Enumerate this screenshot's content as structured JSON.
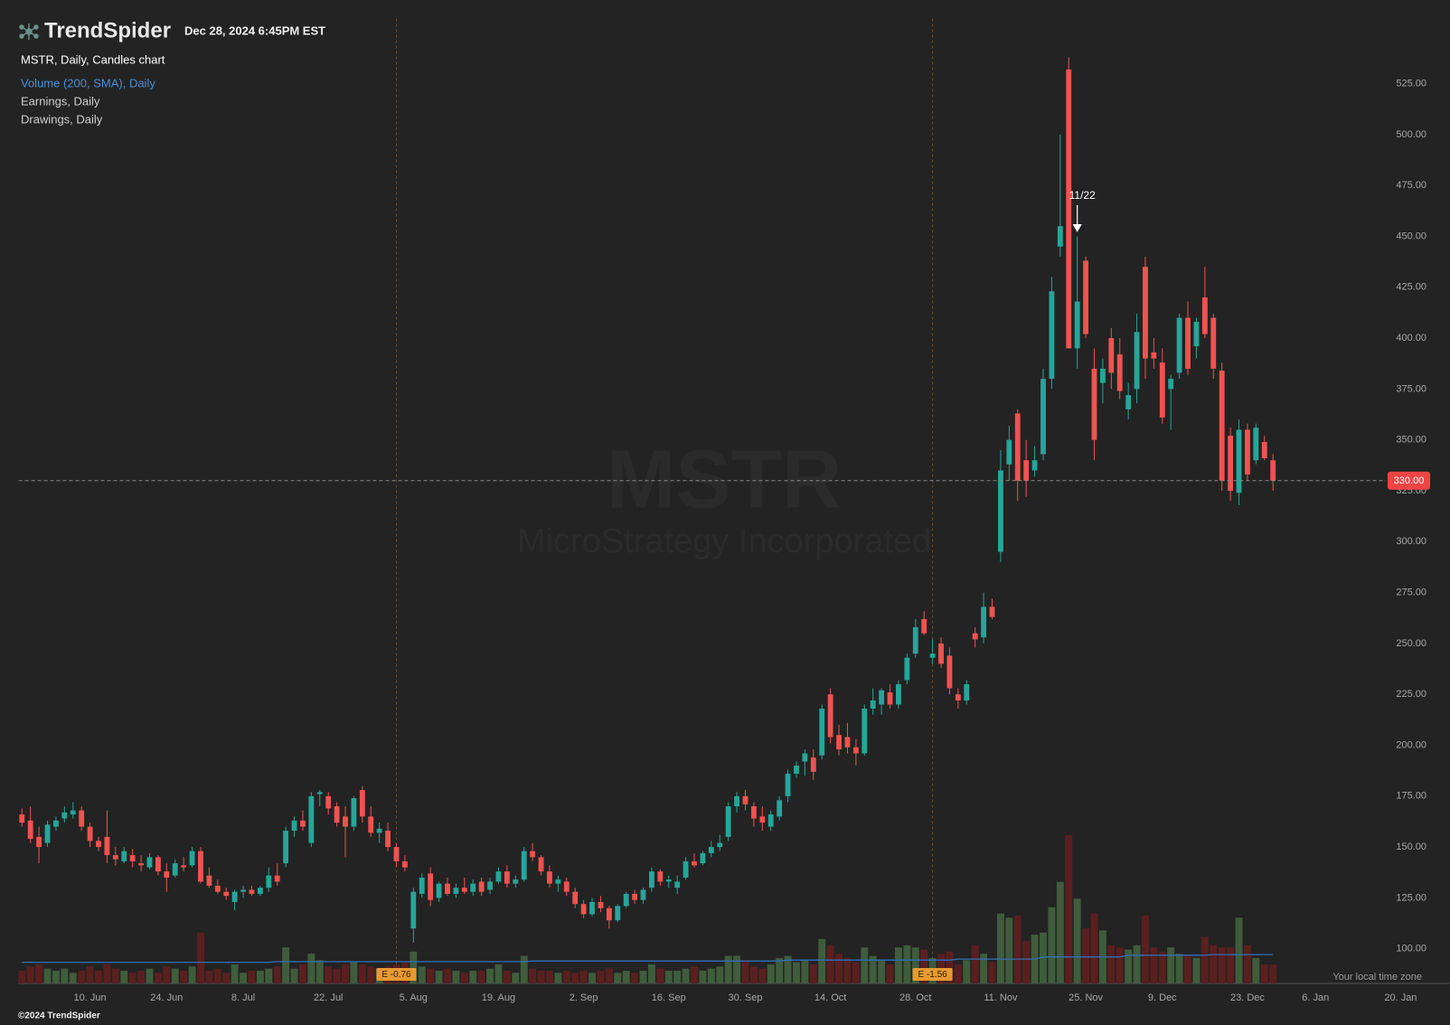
{
  "header": {
    "brand": "TrendSpider",
    "timestamp": "Dec 28, 2024 6:45PM EST"
  },
  "legend": [
    "Volume (200, SMA), Daily",
    "Earnings, Daily",
    "Drawings, Daily"
  ],
  "watermark": {
    "symbol": "MSTR",
    "name": "MicroStrategy Incorporated"
  },
  "footer": {
    "timezone_note": "Your local time zone",
    "copyright": "©2024 TrendSpider"
  },
  "chart_data": {
    "type": "candlestick",
    "title": "MSTR, Daily, Candles chart",
    "up_color": "#26a69a",
    "down_color": "#ef5350",
    "volume_up_color": "#3f5c3c",
    "volume_down_color": "#5a1f1f",
    "sma_color": "#2f6fb8",
    "open": [
      166,
      163,
      155,
      152,
      160,
      164,
      166,
      168,
      160,
      153,
      155,
      146,
      143,
      146,
      142,
      140,
      145,
      138,
      136,
      141,
      141,
      148,
      136,
      131,
      128,
      123,
      128,
      129,
      127,
      130,
      136,
      142,
      158,
      163,
      152,
      176,
      175,
      170,
      165,
      160,
      178,
      165,
      157,
      158,
      150,
      143,
      110,
      127,
      137,
      125,
      132,
      127,
      130,
      128,
      133,
      129,
      133,
      138,
      132,
      134,
      148,
      145,
      138,
      132,
      133,
      128,
      122,
      117,
      123,
      120,
      114,
      121,
      127,
      124,
      130,
      138,
      133,
      130,
      135,
      143,
      142,
      147,
      150,
      155,
      170,
      175,
      170,
      165,
      160,
      165,
      175,
      186,
      192,
      194,
      195,
      225,
      205,
      204,
      199,
      196,
      218,
      220,
      226,
      220,
      232,
      245,
      262,
      243,
      250,
      244,
      225,
      222,
      255,
      253,
      268,
      295,
      338,
      363,
      340,
      335,
      343,
      380,
      445,
      532,
      395,
      438,
      385,
      378,
      400,
      392,
      365,
      375,
      435,
      393,
      388,
      375,
      383,
      410,
      396,
      420,
      410,
      384,
      352,
      324,
      355,
      340,
      349,
      340
    ],
    "high": [
      169,
      170,
      160,
      163,
      165,
      170,
      172,
      170,
      162,
      155,
      168,
      150,
      150,
      149,
      146,
      147,
      146,
      142,
      144,
      145,
      150,
      150,
      140,
      134,
      130,
      129,
      131,
      131,
      131,
      140,
      142,
      160,
      165,
      168,
      177,
      178,
      177,
      172,
      170,
      175,
      180,
      170,
      162,
      162,
      152,
      146,
      130,
      137,
      140,
      133,
      135,
      132,
      135,
      134,
      135,
      135,
      140,
      141,
      136,
      150,
      152,
      146,
      141,
      136,
      135,
      130,
      124,
      125,
      126,
      121,
      122,
      128,
      129,
      130,
      140,
      139,
      136,
      136,
      145,
      147,
      148,
      153,
      156,
      172,
      177,
      178,
      172,
      170,
      168,
      175,
      188,
      192,
      198,
      198,
      220,
      228,
      210,
      211,
      203,
      220,
      228,
      228,
      230,
      232,
      245,
      262,
      266,
      252,
      253,
      248,
      228,
      232,
      258,
      275,
      272,
      345,
      357,
      365,
      350,
      347,
      385,
      430,
      500,
      538,
      450,
      440,
      395,
      390,
      405,
      400,
      378,
      412,
      440,
      400,
      395,
      382,
      412,
      418,
      410,
      435,
      412,
      388,
      356,
      360,
      358,
      358,
      352,
      343
    ],
    "low": [
      160,
      152,
      142,
      150,
      158,
      162,
      164,
      158,
      150,
      148,
      142,
      141,
      142,
      140,
      138,
      139,
      136,
      128,
      135,
      138,
      140,
      132,
      130,
      127,
      124,
      119,
      125,
      126,
      126,
      128,
      131,
      140,
      155,
      158,
      150,
      170,
      166,
      160,
      145,
      158,
      162,
      155,
      152,
      148,
      140,
      138,
      103,
      125,
      121,
      123,
      126,
      125,
      127,
      126,
      126,
      127,
      132,
      130,
      130,
      133,
      143,
      136,
      130,
      128,
      126,
      120,
      115,
      116,
      118,
      110,
      113,
      120,
      122,
      122,
      128,
      131,
      130,
      127,
      134,
      140,
      141,
      145,
      148,
      153,
      167,
      168,
      160,
      158,
      158,
      163,
      172,
      184,
      185,
      183,
      193,
      201,
      195,
      196,
      190,
      195,
      215,
      215,
      218,
      218,
      230,
      243,
      254,
      240,
      238,
      225,
      218,
      220,
      248,
      250,
      262,
      290,
      330,
      320,
      322,
      332,
      340,
      375,
      440,
      395,
      385,
      400,
      340,
      368,
      375,
      370,
      360,
      368,
      380,
      385,
      358,
      355,
      380,
      382,
      390,
      400,
      380,
      325,
      320,
      318,
      330,
      338,
      340,
      325
    ],
    "close": [
      162,
      154,
      150,
      161,
      163,
      167,
      168,
      160,
      153,
      150,
      146,
      144,
      148,
      143,
      141,
      145,
      138,
      135,
      142,
      140,
      148,
      133,
      131,
      128,
      126,
      128,
      129,
      127,
      130,
      136,
      133,
      158,
      163,
      160,
      175,
      177,
      169,
      162,
      160,
      174,
      165,
      157,
      159,
      150,
      143,
      140,
      128,
      135,
      124,
      132,
      127,
      130,
      128,
      132,
      128,
      133,
      138,
      132,
      134,
      148,
      145,
      138,
      132,
      134,
      128,
      122,
      117,
      123,
      120,
      114,
      121,
      127,
      124,
      129,
      138,
      133,
      134,
      133,
      143,
      141,
      147,
      150,
      152,
      170,
      175,
      171,
      164,
      162,
      166,
      173,
      186,
      190,
      196,
      187,
      218,
      204,
      198,
      199,
      196,
      218,
      222,
      227,
      220,
      230,
      243,
      258,
      255,
      245,
      240,
      228,
      222,
      230,
      252,
      268,
      263,
      335,
      350,
      330,
      330,
      340,
      380,
      423,
      455,
      395,
      418,
      402,
      350,
      385,
      383,
      374,
      372,
      403,
      390,
      390,
      361,
      380,
      410,
      385,
      408,
      402,
      385,
      330,
      325,
      355,
      333,
      356,
      341,
      330
    ],
    "volume": [
      6,
      8,
      9,
      7,
      6,
      7,
      5,
      6,
      8,
      6,
      9,
      7,
      6,
      5,
      6,
      7,
      5,
      8,
      7,
      6,
      8,
      24,
      6,
      7,
      5,
      9,
      5,
      6,
      6,
      7,
      8,
      17,
      7,
      9,
      14,
      11,
      8,
      7,
      9,
      10,
      9,
      8,
      7,
      8,
      9,
      10,
      15,
      8,
      7,
      6,
      7,
      6,
      5,
      6,
      6,
      7,
      9,
      6,
      5,
      13,
      7,
      6,
      6,
      5,
      6,
      5,
      6,
      5,
      6,
      7,
      5,
      6,
      5,
      6,
      9,
      7,
      6,
      6,
      7,
      8,
      6,
      7,
      8,
      13,
      13,
      11,
      8,
      7,
      9,
      12,
      13,
      10,
      11,
      9,
      21,
      18,
      14,
      12,
      10,
      17,
      13,
      11,
      9,
      17,
      18,
      17,
      16,
      12,
      14,
      15,
      9,
      11,
      18,
      14,
      10,
      33,
      31,
      32,
      20,
      23,
      24,
      36,
      48,
      70,
      40,
      26,
      33,
      25,
      18,
      17,
      16,
      18,
      32,
      17,
      15,
      17,
      14,
      13,
      12,
      22,
      18,
      17,
      17,
      31,
      18,
      12,
      9,
      9
    ],
    "volume_sma": [
      10.0,
      10.0,
      10.0,
      10.0,
      10.0,
      10.0,
      10.0,
      10.0,
      10.0,
      10.0,
      10.0,
      10.0,
      10.0,
      10.0,
      10.0,
      10.0,
      10.0,
      10.0,
      10.0,
      10.0,
      10.0,
      10.0,
      10.0,
      10.0,
      10.0,
      10.0,
      10.0,
      10.0,
      10.0,
      10.0,
      10.3,
      10.3,
      10.3,
      10.3,
      10.3,
      10.3,
      10.3,
      10.3,
      10.3,
      10.3,
      10.3,
      10.3,
      10.3,
      10.3,
      10.3,
      10.3,
      10.3,
      10.3,
      10.3,
      10.3,
      10.3,
      10.3,
      10.3,
      10.3,
      10.3,
      10.3,
      10.3,
      10.3,
      10.3,
      10.3,
      10.6,
      10.6,
      10.6,
      10.6,
      10.6,
      10.6,
      10.6,
      10.6,
      10.6,
      10.6,
      10.6,
      10.6,
      10.6,
      10.6,
      10.6,
      10.6,
      10.6,
      10.6,
      10.6,
      10.6,
      10.6,
      10.6,
      10.6,
      10.6,
      10.6,
      10.6,
      10.6,
      10.6,
      10.6,
      10.6,
      11.0,
      11.0,
      11.0,
      11.0,
      11.0,
      11.0,
      11.0,
      11.0,
      11.0,
      11.0,
      11.0,
      11.0,
      11.0,
      11.0,
      11.0,
      11.0,
      11.0,
      11.0,
      11.0,
      11.0,
      11.5,
      11.5,
      11.5,
      11.5,
      11.5,
      11.5,
      11.5,
      11.5,
      11.5,
      11.5,
      12.5,
      12.5,
      12.5,
      12.5,
      12.5,
      12.5,
      12.5,
      12.5,
      12.5,
      12.5,
      13.3,
      13.3,
      13.3,
      13.3,
      13.3,
      13.3,
      13.3,
      13.3,
      13.3,
      13.3,
      13.6,
      13.6,
      13.6,
      13.6,
      13.6,
      13.6,
      13.6,
      13.6
    ],
    "xlim": [
      -0.4,
      167.8
    ],
    "ylim": [
      83,
      557
    ],
    "yticks": [
      {
        "value": 100,
        "label": "100.00"
      },
      {
        "value": 125,
        "label": "125.00"
      },
      {
        "value": 150,
        "label": "150.00"
      },
      {
        "value": 175,
        "label": "175.00"
      },
      {
        "value": 200,
        "label": "200.00"
      },
      {
        "value": 225,
        "label": "225.00"
      },
      {
        "value": 250,
        "label": "250.00"
      },
      {
        "value": 275,
        "label": "275.00"
      },
      {
        "value": 300,
        "label": "300.00"
      },
      {
        "value": 325,
        "label": "325.00"
      },
      {
        "value": 350,
        "label": "350.00"
      },
      {
        "value": 375,
        "label": "375.00"
      },
      {
        "value": 400,
        "label": "400.00"
      },
      {
        "value": 425,
        "label": "425.00"
      },
      {
        "value": 450,
        "label": "450.00"
      },
      {
        "value": 475,
        "label": "475.00"
      },
      {
        "value": 500,
        "label": "500.00"
      },
      {
        "value": 525,
        "label": "525.00"
      }
    ],
    "xticks": [
      {
        "value": 8,
        "label": "10. Jun"
      },
      {
        "value": 17,
        "label": "24. Jun"
      },
      {
        "value": 26,
        "label": "8. Jul"
      },
      {
        "value": 36,
        "label": "22. Jul"
      },
      {
        "value": 46,
        "label": "5. Aug"
      },
      {
        "value": 56,
        "label": "19. Aug"
      },
      {
        "value": 66,
        "label": "2. Sep"
      },
      {
        "value": 76,
        "label": "16. Sep"
      },
      {
        "value": 85,
        "label": "30. Sep"
      },
      {
        "value": 95,
        "label": "14. Oct"
      },
      {
        "value": 105,
        "label": "28. Oct"
      },
      {
        "value": 115,
        "label": "11. Nov"
      },
      {
        "value": 125,
        "label": "25. Nov"
      },
      {
        "value": 134,
        "label": "9. Dec"
      },
      {
        "value": 144,
        "label": "23. Dec"
      },
      {
        "value": 152,
        "label": "6. Jan"
      },
      {
        "value": 162,
        "label": "20. Jan"
      }
    ],
    "earnings": [
      {
        "x": 44,
        "label": "E -0.76"
      },
      {
        "x": 107,
        "label": "E -1.56"
      }
    ],
    "annotation": {
      "text": "11/22",
      "x": 124,
      "y": 452
    },
    "last_price_label": "330.00"
  }
}
